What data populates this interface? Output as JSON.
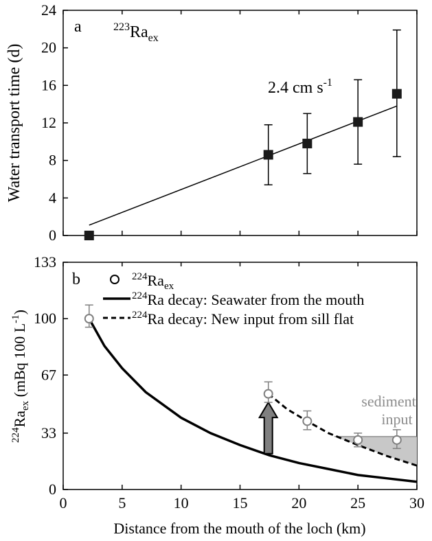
{
  "colors": {
    "axis": "#000000",
    "marker": "#1a1a1a",
    "open_marker_fill": "#ffffff",
    "open_marker_stroke": "#808080",
    "arrow_fill": "#808080",
    "arrow_stroke": "#000000",
    "shade": "#c8c8c8",
    "sediment_text": "#8c8c8c"
  },
  "x_axis": {
    "label": "Distance from the mouth of the loch (km)",
    "ticks": [
      0,
      5,
      10,
      15,
      20,
      25,
      30
    ],
    "tick_labels": [
      "0",
      "5",
      "10",
      "15",
      "20",
      "25",
      "30"
    ],
    "range": [
      0,
      30
    ]
  },
  "chart_data": [
    {
      "type": "scatter",
      "panel_label": "a",
      "series_label_main": "223",
      "series_label_base": "Ra",
      "series_label_sub": "ex",
      "ylabel": "Water transport time (d)",
      "xlim": [
        0,
        30
      ],
      "ylim": [
        0,
        24
      ],
      "y_ticks": [
        0,
        4,
        8,
        12,
        16,
        20,
        24
      ],
      "y_tick_labels": [
        "0",
        "4",
        "8",
        "12",
        "16",
        "20",
        "24"
      ],
      "points": [
        {
          "x": 2.2,
          "y": 0,
          "err_low": 0,
          "err_high": 0
        },
        {
          "x": 17.4,
          "y": 8.6,
          "err_low": 5.4,
          "err_high": 11.8
        },
        {
          "x": 20.7,
          "y": 9.8,
          "err_low": 6.6,
          "err_high": 13.0
        },
        {
          "x": 25.0,
          "y": 12.1,
          "err_low": 7.6,
          "err_high": 16.6
        },
        {
          "x": 28.3,
          "y": 15.1,
          "err_low": 8.4,
          "err_high": 21.9
        }
      ],
      "fit_line": {
        "x": [
          2.2,
          28.3
        ],
        "y": [
          1.1,
          13.8
        ]
      },
      "annotation": {
        "base": "2.4 cm s",
        "sup": "-1"
      }
    },
    {
      "type": "line",
      "panel_label": "b",
      "ylabel_sup": "224",
      "ylabel_base": "Ra",
      "ylabel_sub": "ex",
      "ylabel_rest": " (mBq 100 L",
      "ylabel_sup2": "-1",
      "ylabel_end": ")",
      "xlim": [
        0,
        30
      ],
      "ylim": [
        0,
        133
      ],
      "y_ticks": [
        0,
        33,
        67,
        100,
        133
      ],
      "y_tick_labels": [
        "0",
        "33",
        "67",
        "100",
        "133"
      ],
      "legend": [
        {
          "kind": "marker",
          "sup": "224",
          "text": "Ra",
          "sub": "ex"
        },
        {
          "kind": "solid",
          "sup": "224",
          "text": "Ra decay: Seawater from the mouth"
        },
        {
          "kind": "dashed",
          "sup": "224",
          "text": "Ra decay: New input from sill flat"
        }
      ],
      "points": [
        {
          "x": 2.2,
          "y": 100,
          "err_low": 95,
          "err_high": 108
        },
        {
          "x": 17.4,
          "y": 56,
          "err_low": 51,
          "err_high": 63
        },
        {
          "x": 20.7,
          "y": 40,
          "err_low": 35,
          "err_high": 46
        },
        {
          "x": 25.0,
          "y": 29,
          "err_low": 25,
          "err_high": 33
        },
        {
          "x": 28.3,
          "y": 29,
          "err_low": 24,
          "err_high": 35
        }
      ],
      "solid_curve": {
        "x": [
          2.2,
          3.5,
          5,
          7,
          10,
          12.5,
          15,
          17.5,
          20,
          22.5,
          25,
          27.5,
          30
        ],
        "y": [
          100,
          84,
          71,
          57,
          42,
          33,
          26,
          20,
          15.5,
          12,
          8.5,
          6.5,
          4.5
        ]
      },
      "dashed_curve": {
        "x": [
          17.4,
          19,
          20.7,
          22.5,
          25,
          27.5,
          30
        ],
        "y": [
          56,
          47,
          40,
          33,
          26,
          19.5,
          14
        ]
      },
      "shaded_region": {
        "x": [
          23,
          30
        ],
        "y_top": 31
      },
      "arrow": {
        "x": 17.4,
        "y_from": 21,
        "y_to": 51
      },
      "annotation_lines": [
        "sediment",
        "input"
      ]
    }
  ]
}
